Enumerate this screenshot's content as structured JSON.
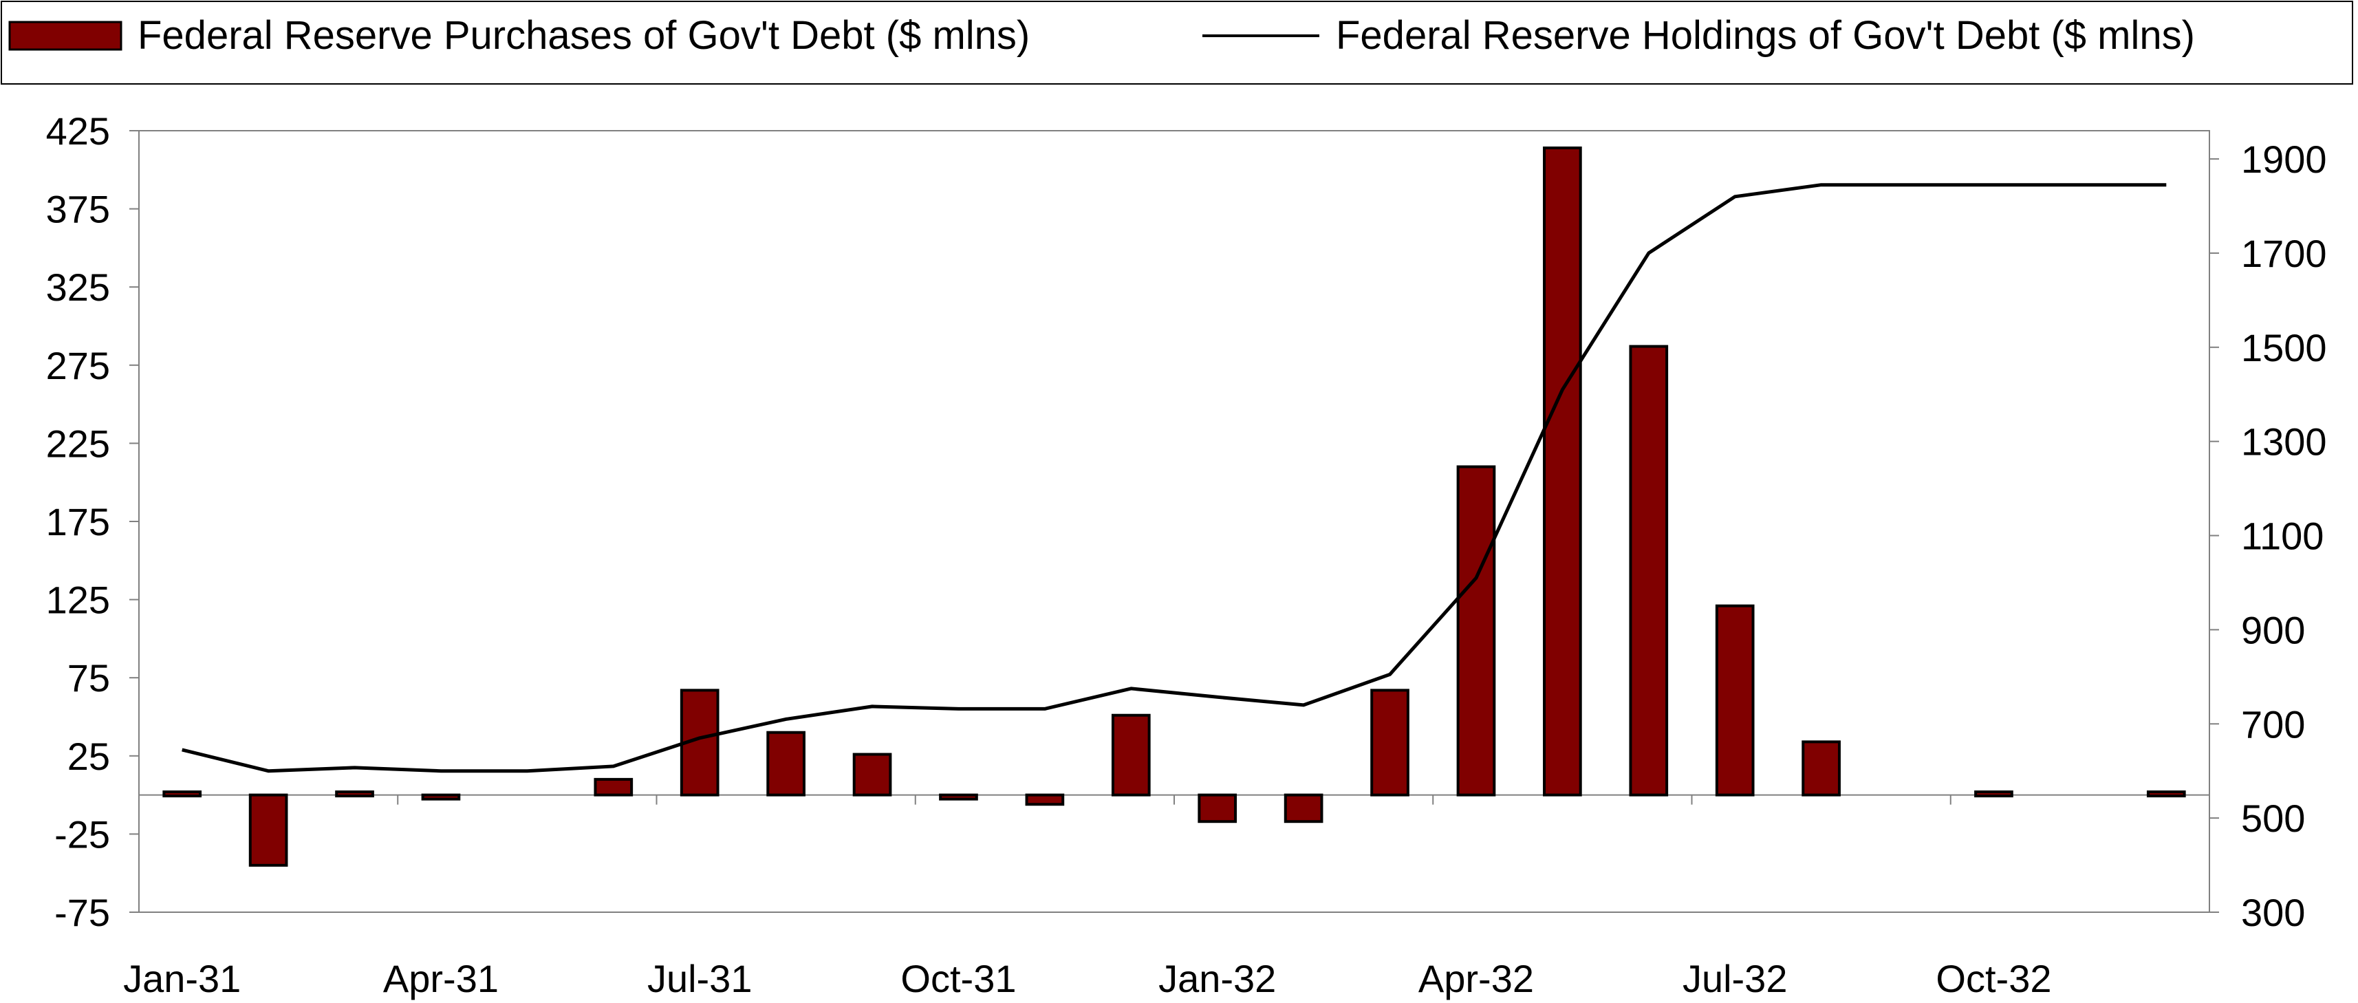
{
  "chart_data": {
    "type": "bar",
    "x": [
      "Jan-31",
      "Feb-31",
      "Mar-31",
      "Apr-31",
      "May-31",
      "Jun-31",
      "Jul-31",
      "Aug-31",
      "Sep-31",
      "Oct-31",
      "Nov-31",
      "Dec-31",
      "Jan-32",
      "Feb-32",
      "Mar-32",
      "Apr-32",
      "May-32",
      "Jun-32",
      "Jul-32",
      "Aug-32",
      "Sep-32",
      "Oct-32",
      "Nov-32",
      "Dec-32"
    ],
    "x_tick_labels": [
      "Jan-31",
      "Apr-31",
      "Jul-31",
      "Oct-31",
      "Jan-32",
      "Apr-32",
      "Jul-32",
      "Oct-32"
    ],
    "series": [
      {
        "name": "Federal Reserve Purchases of Gov't Debt ($ mlns)",
        "type": "bar",
        "axis": "left",
        "color": "#800000",
        "values": [
          2,
          -45,
          2,
          -2,
          0,
          10,
          67,
          40,
          26,
          -2,
          -6,
          51,
          -17,
          -17,
          67,
          210,
          414,
          287,
          121,
          34,
          0,
          2,
          0,
          2
        ]
      },
      {
        "name": "Federal Reserve Holdings of Gov't Debt ($ mlns)",
        "type": "line",
        "axis": "right",
        "color": "#000000",
        "values": [
          645,
          600,
          607,
          600,
          600,
          610,
          670,
          710,
          737,
          732,
          732,
          775,
          757,
          740,
          805,
          1010,
          1410,
          1700,
          1820,
          1845,
          1845,
          1845,
          1845,
          1845
        ]
      }
    ],
    "y_left": {
      "ticks": [
        425,
        375,
        325,
        275,
        225,
        175,
        125,
        75,
        25,
        -25,
        -75
      ],
      "ylim": [
        -75,
        425
      ]
    },
    "y_right": {
      "ticks": [
        1900,
        1700,
        1500,
        1300,
        1100,
        900,
        700,
        500,
        300
      ],
      "ylim": [
        300,
        1960
      ]
    },
    "legend": "top",
    "grid": false
  }
}
